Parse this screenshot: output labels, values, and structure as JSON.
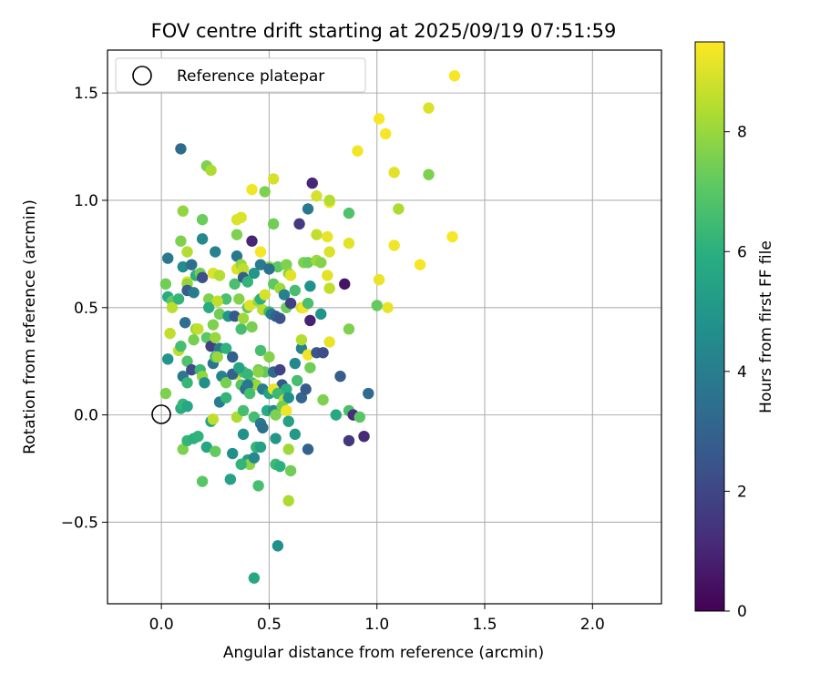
{
  "chart_data": {
    "type": "scatter",
    "title": "FOV centre drift starting at 2025/09/19 07:51:59",
    "xlabel": "Angular distance from reference (arcmin)",
    "ylabel": "Rotation from reference (arcmin)",
    "xlim": [
      -0.25,
      2.32
    ],
    "ylim": [
      -0.88,
      1.7
    ],
    "xticks": [
      0.0,
      0.5,
      1.0,
      1.5,
      2.0
    ],
    "xtick_labels": [
      "0.0",
      "0.5",
      "1.0",
      "1.5",
      "2.0"
    ],
    "yticks": [
      -0.5,
      0.0,
      0.5,
      1.0,
      1.5
    ],
    "ytick_labels": [
      "−0.5",
      "0.0",
      "0.5",
      "1.0",
      "1.5"
    ],
    "grid": true,
    "legend": {
      "placement": "top-left",
      "entries": [
        "Reference platepar"
      ]
    },
    "reference_point": {
      "x": 0.0,
      "y": 0.0,
      "label": "Reference platepar"
    },
    "colorbar": {
      "label": "Hours from first FF file",
      "range": [
        0,
        9.5
      ],
      "ticks": [
        0,
        2,
        4,
        6,
        8
      ],
      "tick_labels": [
        "0",
        "2",
        "4",
        "6",
        "8"
      ],
      "colormap": "viridis"
    },
    "points": [
      [
        0.09,
        1.24,
        3.3
      ],
      [
        0.21,
        1.16,
        7.6
      ],
      [
        0.23,
        1.14,
        8.3
      ],
      [
        0.52,
        1.1,
        8.9
      ],
      [
        0.42,
        1.05,
        9.3
      ],
      [
        0.48,
        1.04,
        7.6
      ],
      [
        0.7,
        1.08,
        1.0
      ],
      [
        0.72,
        1.02,
        8.9
      ],
      [
        0.78,
        0.99,
        9.4
      ],
      [
        0.78,
        1.0,
        8.4
      ],
      [
        0.68,
        0.96,
        3.8
      ],
      [
        0.87,
        0.94,
        6.8
      ],
      [
        0.91,
        1.23,
        9.3
      ],
      [
        1.01,
        1.38,
        9.4
      ],
      [
        1.04,
        1.31,
        9.4
      ],
      [
        1.08,
        1.13,
        9.1
      ],
      [
        1.1,
        0.96,
        8.3
      ],
      [
        1.24,
        1.43,
        9.0
      ],
      [
        1.36,
        1.58,
        9.4
      ],
      [
        1.24,
        1.12,
        7.6
      ],
      [
        1.35,
        0.83,
        9.4
      ],
      [
        1.2,
        0.7,
        9.4
      ],
      [
        1.08,
        0.79,
        9.3
      ],
      [
        1.01,
        0.63,
        9.2
      ],
      [
        1.05,
        0.5,
        9.2
      ],
      [
        1.0,
        0.51,
        7.2
      ],
      [
        0.87,
        0.8,
        9.1
      ],
      [
        0.1,
        0.95,
        7.9
      ],
      [
        0.19,
        0.91,
        7.3
      ],
      [
        0.35,
        0.91,
        9.0
      ],
      [
        0.37,
        0.92,
        9.0
      ],
      [
        0.52,
        0.89,
        7.4
      ],
      [
        0.64,
        0.89,
        1.6
      ],
      [
        0.35,
        0.84,
        7.6
      ],
      [
        0.72,
        0.84,
        8.6
      ],
      [
        0.77,
        0.83,
        9.2
      ],
      [
        0.78,
        0.76,
        9.0
      ],
      [
        0.03,
        0.73,
        3.8
      ],
      [
        0.09,
        0.81,
        7.6
      ],
      [
        0.12,
        0.76,
        8.4
      ],
      [
        0.19,
        0.82,
        4.4
      ],
      [
        0.25,
        0.76,
        4.2
      ],
      [
        0.35,
        0.74,
        3.8
      ],
      [
        0.42,
        0.81,
        1.0
      ],
      [
        0.46,
        0.76,
        9.4
      ],
      [
        0.5,
        0.69,
        7.9
      ],
      [
        0.54,
        0.69,
        7.1
      ],
      [
        0.58,
        0.7,
        7.6
      ],
      [
        0.59,
        0.66,
        7.8
      ],
      [
        0.6,
        0.65,
        9.1
      ],
      [
        0.66,
        0.71,
        7.6
      ],
      [
        0.68,
        0.71,
        7.3
      ],
      [
        0.72,
        0.72,
        8.1
      ],
      [
        0.74,
        0.71,
        7.7
      ],
      [
        0.77,
        0.65,
        9.1
      ],
      [
        0.78,
        0.59,
        8.6
      ],
      [
        0.69,
        0.6,
        4.8
      ],
      [
        0.02,
        0.61,
        7.4
      ],
      [
        0.1,
        0.69,
        4.6
      ],
      [
        0.12,
        0.62,
        9.1
      ],
      [
        0.12,
        0.61,
        7.9
      ],
      [
        0.14,
        0.7,
        3.4
      ],
      [
        0.16,
        0.65,
        6.0
      ],
      [
        0.18,
        0.66,
        7.4
      ],
      [
        0.19,
        0.64,
        2.3
      ],
      [
        0.24,
        0.66,
        9.0
      ],
      [
        0.27,
        0.65,
        8.4
      ],
      [
        0.3,
        0.54,
        6.7
      ],
      [
        0.34,
        0.61,
        6.7
      ],
      [
        0.35,
        0.68,
        9.0
      ],
      [
        0.37,
        0.7,
        8.0
      ],
      [
        0.38,
        0.68,
        8.6
      ],
      [
        0.38,
        0.64,
        2.8
      ],
      [
        0.4,
        0.62,
        6.2
      ],
      [
        0.43,
        0.66,
        5.0
      ],
      [
        0.46,
        0.7,
        3.9
      ],
      [
        0.5,
        0.68,
        3.5
      ],
      [
        0.52,
        0.61,
        7.1
      ],
      [
        0.55,
        0.59,
        8.1
      ],
      [
        0.57,
        0.56,
        4.1
      ],
      [
        0.58,
        0.5,
        7.3
      ],
      [
        0.6,
        0.52,
        1.8
      ],
      [
        0.62,
        0.58,
        6.6
      ],
      [
        0.65,
        0.5,
        8.8
      ],
      [
        0.66,
        0.5,
        9.4
      ],
      [
        0.68,
        0.52,
        6.7
      ],
      [
        0.69,
        0.44,
        0.9
      ],
      [
        0.74,
        0.47,
        4.9
      ],
      [
        0.85,
        0.61,
        0.5
      ],
      [
        0.03,
        0.55,
        5.8
      ],
      [
        0.05,
        0.53,
        7.1
      ],
      [
        0.05,
        0.5,
        8.5
      ],
      [
        0.08,
        0.54,
        6.2
      ],
      [
        0.12,
        0.58,
        2.8
      ],
      [
        0.15,
        0.57,
        4.0
      ],
      [
        0.22,
        0.54,
        7.6
      ],
      [
        0.22,
        0.5,
        5.8
      ],
      [
        0.26,
        0.53,
        8.6
      ],
      [
        0.27,
        0.47,
        7.4
      ],
      [
        0.31,
        0.46,
        5.0
      ],
      [
        0.34,
        0.46,
        2.6
      ],
      [
        0.36,
        0.54,
        7.7
      ],
      [
        0.37,
        0.4,
        6.6
      ],
      [
        0.38,
        0.45,
        8.1
      ],
      [
        0.4,
        0.5,
        7.1
      ],
      [
        0.41,
        0.51,
        9.0
      ],
      [
        0.42,
        0.41,
        7.5
      ],
      [
        0.45,
        0.53,
        7.9
      ],
      [
        0.46,
        0.54,
        6.0
      ],
      [
        0.47,
        0.49,
        8.5
      ],
      [
        0.48,
        0.56,
        8.9
      ],
      [
        0.5,
        0.48,
        6.4
      ],
      [
        0.51,
        0.47,
        4.0
      ],
      [
        0.53,
        0.46,
        3.0
      ],
      [
        0.55,
        0.45,
        2.5
      ],
      [
        0.04,
        0.38,
        8.6
      ],
      [
        0.08,
        0.3,
        8.6
      ],
      [
        0.09,
        0.32,
        6.6
      ],
      [
        0.11,
        0.43,
        3.4
      ],
      [
        0.12,
        0.25,
        6.8
      ],
      [
        0.15,
        0.35,
        7.5
      ],
      [
        0.16,
        0.4,
        8.0
      ],
      [
        0.17,
        0.4,
        8.6
      ],
      [
        0.21,
        0.36,
        7.1
      ],
      [
        0.23,
        0.32,
        1.8
      ],
      [
        0.24,
        0.42,
        7.6
      ],
      [
        0.25,
        0.36,
        8.0
      ],
      [
        0.27,
        0.31,
        3.9
      ],
      [
        0.3,
        0.31,
        6.1
      ],
      [
        0.33,
        0.27,
        2.9
      ],
      [
        0.35,
        0.19,
        8.9
      ],
      [
        0.38,
        0.2,
        6.6
      ],
      [
        0.4,
        0.19,
        6.3
      ],
      [
        0.42,
        0.15,
        6.7
      ],
      [
        0.44,
        0.14,
        8.0
      ],
      [
        0.45,
        0.21,
        7.4
      ],
      [
        0.46,
        0.3,
        6.6
      ],
      [
        0.48,
        0.2,
        7.2
      ],
      [
        0.5,
        0.27,
        7.7
      ],
      [
        0.52,
        0.2,
        3.2
      ],
      [
        0.55,
        0.21,
        1.9
      ],
      [
        0.56,
        0.14,
        2.6
      ],
      [
        0.58,
        0.12,
        6.0
      ],
      [
        0.62,
        0.24,
        4.4
      ],
      [
        0.63,
        0.16,
        6.6
      ],
      [
        0.65,
        0.31,
        4.1
      ],
      [
        0.65,
        0.35,
        8.4
      ],
      [
        0.68,
        0.28,
        9.3
      ],
      [
        0.69,
        0.22,
        7.4
      ],
      [
        0.72,
        0.29,
        2.6
      ],
      [
        0.75,
        0.29,
        2.2
      ],
      [
        0.78,
        0.34,
        9.2
      ],
      [
        0.83,
        0.18,
        2.8
      ],
      [
        0.87,
        0.4,
        7.6
      ],
      [
        0.03,
        0.26,
        4.9
      ],
      [
        0.1,
        0.18,
        3.8
      ],
      [
        0.12,
        0.15,
        6.3
      ],
      [
        0.14,
        0.21,
        2.2
      ],
      [
        0.18,
        0.21,
        6.3
      ],
      [
        0.19,
        0.18,
        7.9
      ],
      [
        0.2,
        0.15,
        4.7
      ],
      [
        0.24,
        0.24,
        3.6
      ],
      [
        0.25,
        0.27,
        6.6
      ],
      [
        0.26,
        0.27,
        8.0
      ],
      [
        0.28,
        0.18,
        4.2
      ],
      [
        0.3,
        0.15,
        7.5
      ],
      [
        0.33,
        0.19,
        3.0
      ],
      [
        0.36,
        0.22,
        5.5
      ],
      [
        0.37,
        0.14,
        7.0
      ],
      [
        0.39,
        0.12,
        3.5
      ],
      [
        0.4,
        0.14,
        3.8
      ],
      [
        0.41,
        0.1,
        6.6
      ],
      [
        0.45,
        0.2,
        7.8
      ],
      [
        0.47,
        0.12,
        4.0
      ],
      [
        0.5,
        0.1,
        5.5
      ],
      [
        0.52,
        0.12,
        9.2
      ],
      [
        0.54,
        0.1,
        6.4
      ],
      [
        0.57,
        0.07,
        8.6
      ],
      [
        0.59,
        0.08,
        4.7
      ],
      [
        0.65,
        0.08,
        3.1
      ],
      [
        0.67,
        0.12,
        2.7
      ],
      [
        0.75,
        0.07,
        7.6
      ],
      [
        0.81,
        0.0,
        5.7
      ],
      [
        0.87,
        0.02,
        6.7
      ],
      [
        0.89,
        0.0,
        1.2
      ],
      [
        0.92,
        -0.01,
        7.0
      ],
      [
        0.94,
        -0.1,
        1.1
      ],
      [
        0.96,
        0.1,
        3.3
      ],
      [
        0.87,
        -0.12,
        1.5
      ],
      [
        0.02,
        0.1,
        7.6
      ],
      [
        0.09,
        0.03,
        5.9
      ],
      [
        0.1,
        0.05,
        6.3
      ],
      [
        0.12,
        0.04,
        5.6
      ],
      [
        0.23,
        -0.03,
        5.4
      ],
      [
        0.24,
        -0.02,
        8.6
      ],
      [
        0.27,
        0.06,
        4.0
      ],
      [
        0.3,
        0.08,
        6.2
      ],
      [
        0.35,
        -0.01,
        8.3
      ],
      [
        0.38,
        0.02,
        6.6
      ],
      [
        0.43,
        -0.01,
        6.6
      ],
      [
        0.46,
        -0.04,
        3.8
      ],
      [
        0.47,
        -0.06,
        3.5
      ],
      [
        0.49,
        0.02,
        5.8
      ],
      [
        0.52,
        0.02,
        4.6
      ],
      [
        0.53,
        0.0,
        7.6
      ],
      [
        0.56,
        0.04,
        7.4
      ],
      [
        0.58,
        0.02,
        9.3
      ],
      [
        0.59,
        -0.03,
        5.4
      ],
      [
        0.62,
        -0.09,
        5.1
      ],
      [
        0.68,
        -0.16,
        3.0
      ],
      [
        0.1,
        -0.16,
        7.6
      ],
      [
        0.12,
        -0.12,
        6.2
      ],
      [
        0.15,
        -0.11,
        6.0
      ],
      [
        0.17,
        -0.1,
        6.1
      ],
      [
        0.21,
        -0.15,
        5.6
      ],
      [
        0.25,
        -0.17,
        7.2
      ],
      [
        0.33,
        -0.18,
        4.7
      ],
      [
        0.38,
        -0.09,
        4.8
      ],
      [
        0.4,
        -0.21,
        5.4
      ],
      [
        0.41,
        -0.23,
        7.8
      ],
      [
        0.43,
        -0.2,
        4.4
      ],
      [
        0.44,
        -0.15,
        6.2
      ],
      [
        0.46,
        -0.15,
        5.4
      ],
      [
        0.53,
        -0.11,
        5.0
      ],
      [
        0.53,
        -0.23,
        6.4
      ],
      [
        0.55,
        -0.24,
        6.0
      ],
      [
        0.59,
        -0.16,
        8.1
      ],
      [
        0.6,
        -0.26,
        7.4
      ],
      [
        0.19,
        -0.31,
        7.0
      ],
      [
        0.32,
        -0.3,
        5.4
      ],
      [
        0.37,
        -0.23,
        6.2
      ],
      [
        0.45,
        -0.33,
        6.6
      ],
      [
        0.59,
        -0.4,
        8.3
      ],
      [
        0.54,
        -0.61,
        4.8
      ],
      [
        0.43,
        -0.76,
        5.6
      ]
    ]
  }
}
